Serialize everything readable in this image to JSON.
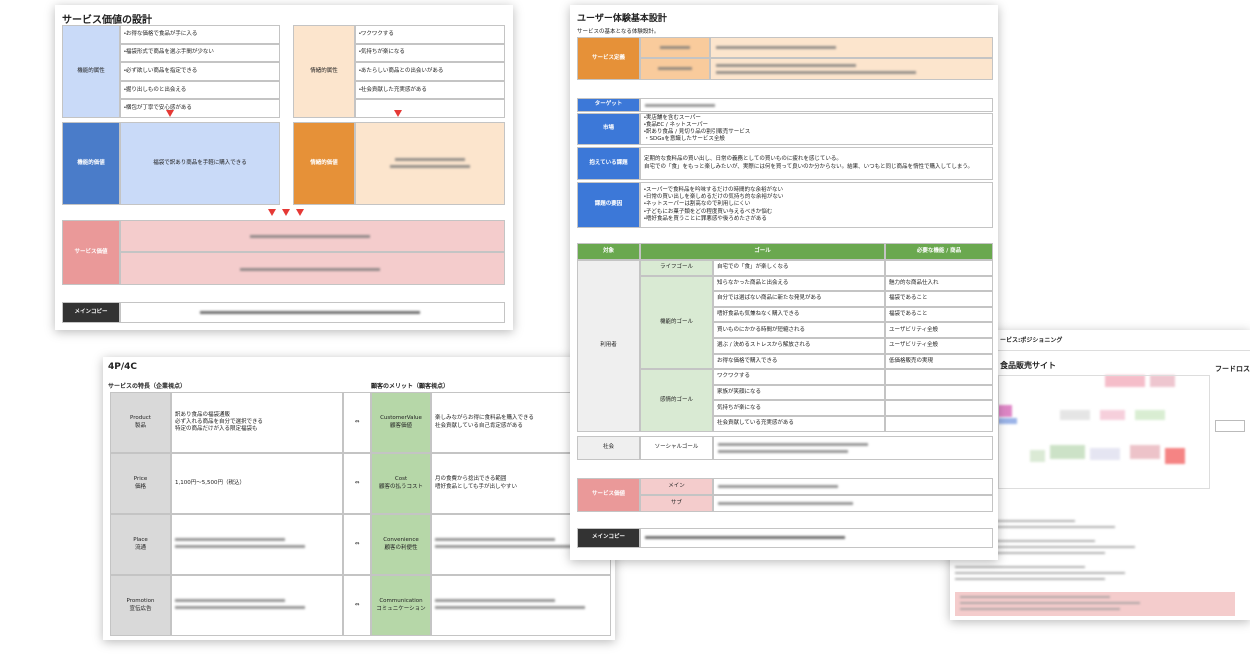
{
  "service_value": {
    "title": "サービス価値の設計",
    "functional_attr": {
      "label": "機能的属性",
      "items": [
        "・お得な価格で食品が手に入る",
        "・福袋形式で商品を選ぶ手間が少ない",
        "・必ず欲しい商品を指定できる",
        "・掘り出しものと出会える",
        "・梱包が丁寧で安心感がある"
      ]
    },
    "emotional_attr": {
      "label": "情緒的属性",
      "items": [
        "・ワクワクする",
        "・気持ちが楽になる",
        "・あたらしい商品との出会いがある",
        "・社会貢献した充実感がある"
      ]
    },
    "functional_value": {
      "label": "機能的価値",
      "text": "福袋で訳あり商品を手軽に購入できる"
    },
    "emotional_value": {
      "label": "情緒的価値"
    },
    "service_value": {
      "label": "サービス価値"
    },
    "main_copy": {
      "label": "メインコピー"
    }
  },
  "ux": {
    "title": "ユーザー体験基本設計",
    "subtitle": "サービスの基本となる体験設計。",
    "definition": {
      "label": "サービス定義"
    },
    "target": {
      "label": "ターゲット"
    },
    "market": {
      "label": "市場",
      "lines": [
        "・実店舗を含むスーパー",
        "・食品EC / ネットスーパー",
        "・訳あり食品 / 見切り品の割引販売サービス",
        "・SDGsを意識したサービス全般"
      ]
    },
    "issues": {
      "label": "抱えている課題",
      "lines": [
        "定期的な食料品の買い出し、日常の義務としての買いものに疲れを感じている。",
        "自宅での「食」をもっと楽しみたいが、実際には何を買って良いのか分からない。結果、いつもと同じ商品を惰性で購入してしまう。"
      ]
    },
    "causes": {
      "label": "課題の要因",
      "lines": [
        "・スーパーで食料品を吟味するだけの時間的な余裕がない",
        "・日常の買い出しを楽しめるだけの気持ち的な余裕がない",
        "・ネットスーパーは割高なので利用しにくい",
        "・子どもにお菓子類をどの程度買い与えるべきか悩む",
        "・嗜好食品を買うことに罪悪感や後ろめたさがある"
      ]
    },
    "goal_header": [
      "対象",
      "ゴール",
      "必要な機能 / 商品"
    ],
    "user": {
      "label": "利用者",
      "life_goal": {
        "label": "ライフゴール",
        "text": "自宅での「食」が楽しくなる"
      },
      "functional_goal": {
        "label": "機能的ゴール",
        "rows": [
          [
            "知らなかった商品と出会える",
            "魅力的な商品仕入れ"
          ],
          [
            "自分では選ばない商品に新たな発見がある",
            "福袋であること"
          ],
          [
            "嗜好食品も気兼ねなく購入できる",
            "福袋であること"
          ],
          [
            "買いものにかかる時間が短縮される",
            "ユーザビリティ全般"
          ],
          [
            "選ぶ / 決めるストレスから解放される",
            "ユーザビリティ全般"
          ],
          [
            "お得な価格で購入できる",
            "低価格販売の実現"
          ]
        ]
      },
      "emotional_goal": {
        "label": "感情的ゴール",
        "rows": [
          "ワクワクする",
          "家族が笑顔になる",
          "気持ちが楽になる",
          "社会貢献している充実感がある"
        ]
      }
    },
    "society": {
      "label": "社会",
      "social_goal": {
        "label": "ソーシャルゴール"
      }
    },
    "service_value": {
      "label": "サービス価値",
      "main": "メイン",
      "sub": "サブ"
    },
    "main_copy": {
      "label": "メインコピー"
    }
  },
  "four_p": {
    "title": "4P/4C",
    "left_header": "サービスの特長（企業視点）",
    "right_header": "顧客のメリット（顧客視点）",
    "arrow": "⇔",
    "rows": [
      {
        "p": "Product",
        "p_ja": "製品",
        "p_text": [
          "訳あり食品の福袋通販",
          "必ず入れる商品を自分で選択できる",
          "特定の商品だけが入る限定福袋も"
        ],
        "c": "CustomerValue",
        "c_ja": "顧客価値",
        "c_text": [
          "楽しみながらお得に食料品を購入できる",
          "社会貢献している自己肯定感がある"
        ]
      },
      {
        "p": "Price",
        "p_ja": "価格",
        "p_text": [
          "1,100円〜5,500円（税込）"
        ],
        "c": "Cost",
        "c_ja": "顧客の払うコスト",
        "c_text": [
          "月の食費から捻出できる範囲",
          "嗜好食品としても手が出しやすい"
        ]
      },
      {
        "p": "Place",
        "p_ja": "流通",
        "p_text": [],
        "c": "Convenience",
        "c_ja": "顧客の利便性",
        "c_text": []
      },
      {
        "p": "Promotion",
        "p_ja": "宣伝広告",
        "p_text": [],
        "c": "Communication",
        "c_ja": "コミュニケーション",
        "c_text": []
      }
    ]
  },
  "positioning": {
    "title": "ービス:ポジショニング",
    "site": "食品販売サイト",
    "cut": "フードロス"
  }
}
